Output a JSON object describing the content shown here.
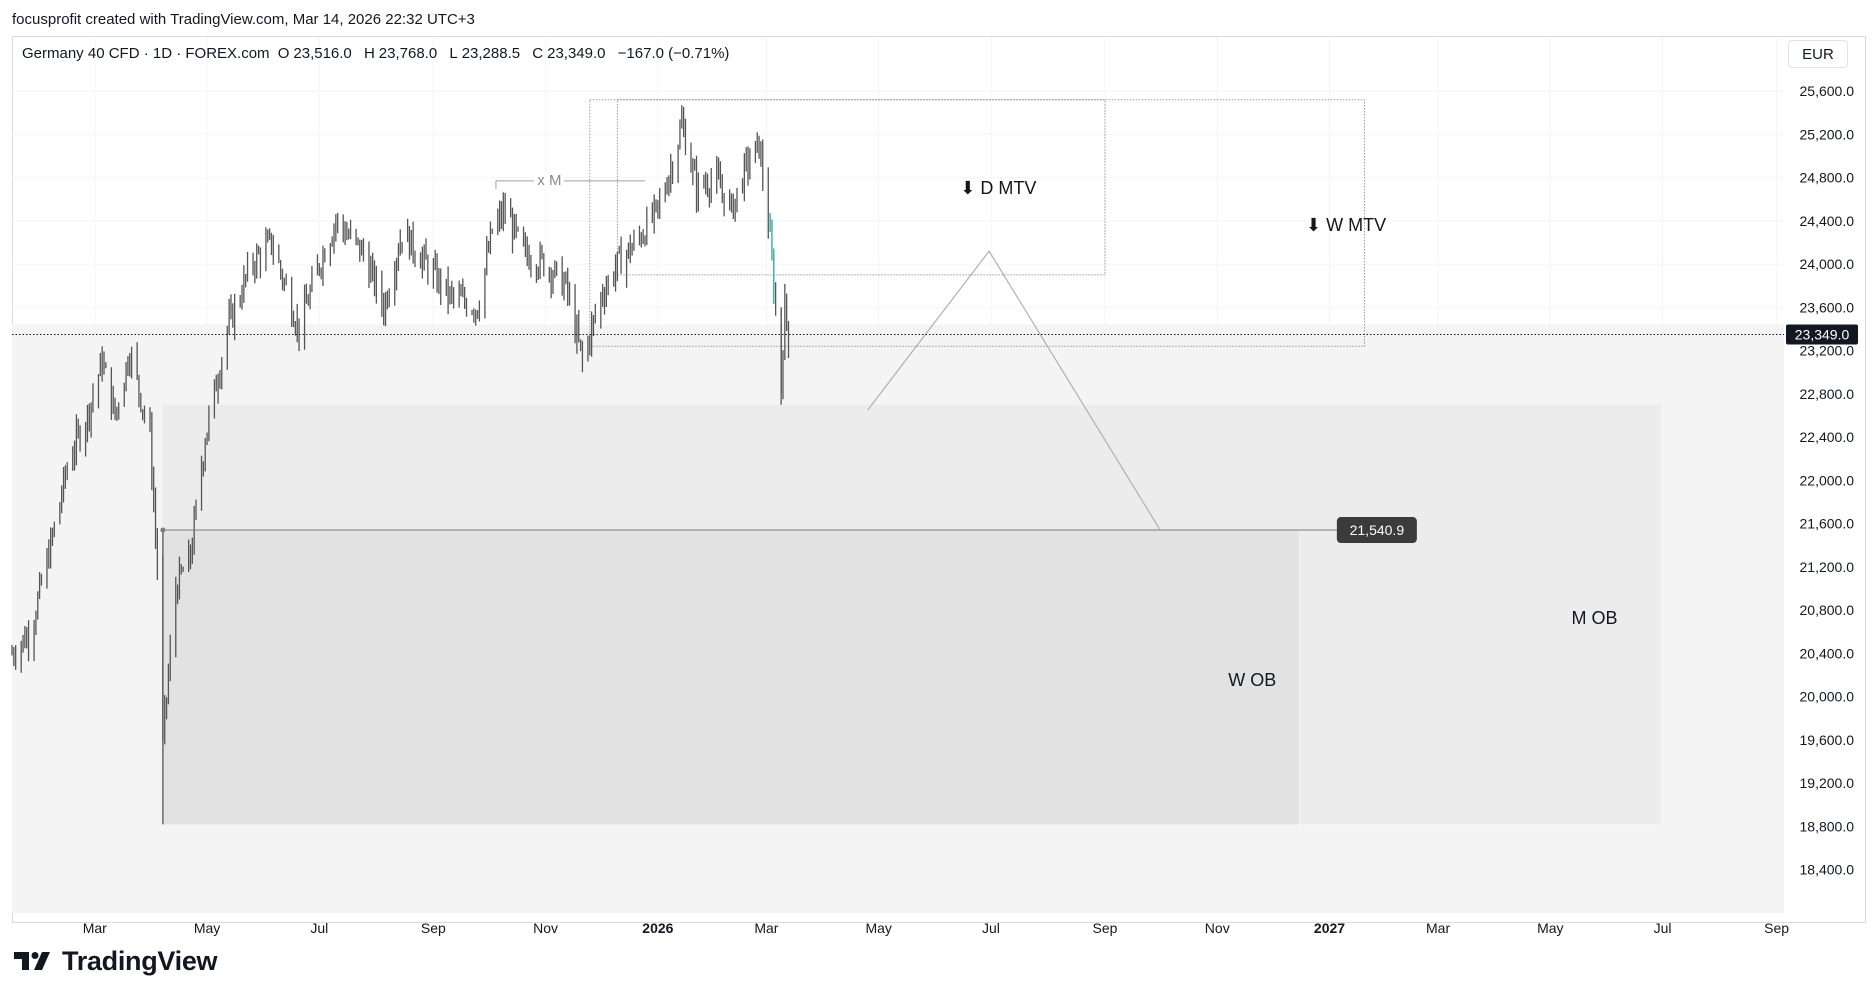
{
  "credit": "focusprofit created with TradingView.com, Mar 14, 2026 22:32 UTC+3",
  "symbol": {
    "name": "Germany 40 CFD · 1D · FOREX.com",
    "open_label": "O",
    "open": "23,516.0",
    "high_label": "H",
    "high": "23,768.0",
    "low_label": "L",
    "low": "23,288.5",
    "close_label": "C",
    "close": "23,349.0",
    "change": "−167.0 (−0.71%)"
  },
  "currency": "EUR",
  "logo_text": "TradingView",
  "colors": {
    "candle": "#555555",
    "last_candle_up": "#26a69a",
    "zone_outer": "#f4f4f4",
    "zone_mid": "#ececec",
    "zone_inner": "#e2e2e2",
    "price_tag": "#131722",
    "target_tag": "#3b3b3b"
  },
  "chart_data": {
    "type": "candlestick",
    "y_axis": {
      "ticks": [
        18400,
        18800,
        19200,
        19600,
        20000,
        20400,
        20800,
        21200,
        21600,
        22000,
        22400,
        22800,
        23200,
        23600,
        24000,
        24400,
        24800,
        25200,
        25600
      ],
      "tick_labels": [
        "18,400.0",
        "18,800.0",
        "19,200.0",
        "19,600.0",
        "20,000.0",
        "20,400.0",
        "20,800.0",
        "21,200.0",
        "21,600.0",
        "22,000.0",
        "22,400.0",
        "22,800.0",
        "23,200.0",
        "23,600.0",
        "24,000.0",
        "24,400.0",
        "24,800.0",
        "25,200.0",
        "25,600.0"
      ],
      "range": [
        18000,
        26100
      ]
    },
    "x_axis": {
      "ticks": [
        {
          "date": "2025-03-01",
          "label": "Mar",
          "bold": false
        },
        {
          "date": "2025-05-01",
          "label": "May",
          "bold": false
        },
        {
          "date": "2025-07-01",
          "label": "Jul",
          "bold": false
        },
        {
          "date": "2025-09-01",
          "label": "Sep",
          "bold": false
        },
        {
          "date": "2025-11-01",
          "label": "Nov",
          "bold": false
        },
        {
          "date": "2026-01-01",
          "label": "2026",
          "bold": true
        },
        {
          "date": "2026-03-01",
          "label": "Mar",
          "bold": false
        },
        {
          "date": "2026-05-01",
          "label": "May",
          "bold": false
        },
        {
          "date": "2026-07-01",
          "label": "Jul",
          "bold": false
        },
        {
          "date": "2026-09-01",
          "label": "Sep",
          "bold": false
        },
        {
          "date": "2026-11-01",
          "label": "Nov",
          "bold": false
        },
        {
          "date": "2027-01-01",
          "label": "2027",
          "bold": true
        },
        {
          "date": "2027-03-01",
          "label": "Mar",
          "bold": false
        },
        {
          "date": "2027-05-01",
          "label": "May",
          "bold": false
        },
        {
          "date": "2027-07-01",
          "label": "Jul",
          "bold": false
        },
        {
          "date": "2027-09-01",
          "label": "Sep",
          "bold": false
        }
      ],
      "range": [
        "2025-01-15",
        "2027-09-05"
      ]
    },
    "last_price": {
      "value": 23349.0,
      "label": "23,349.0"
    },
    "price_path": [
      [
        "2025-01-15",
        20400
      ],
      [
        "2025-01-25",
        20600
      ],
      [
        "2025-02-05",
        21400
      ],
      [
        "2025-02-15",
        22200
      ],
      [
        "2025-02-25",
        22600
      ],
      [
        "2025-03-05",
        23100
      ],
      [
        "2025-03-12",
        22600
      ],
      [
        "2025-03-20",
        23200
      ],
      [
        "2025-03-31",
        22400
      ],
      [
        "2025-04-04",
        21200
      ],
      [
        "2025-04-07",
        19600
      ],
      [
        "2025-04-09",
        20000
      ],
      [
        "2025-04-14",
        21000
      ],
      [
        "2025-04-22",
        21300
      ],
      [
        "2025-04-30",
        22400
      ],
      [
        "2025-05-12",
        23400
      ],
      [
        "2025-05-25",
        24000
      ],
      [
        "2025-06-05",
        24200
      ],
      [
        "2025-06-20",
        23400
      ],
      [
        "2025-07-01",
        24000
      ],
      [
        "2025-07-10",
        24400
      ],
      [
        "2025-07-25",
        24100
      ],
      [
        "2025-08-05",
        23600
      ],
      [
        "2025-08-15",
        24300
      ],
      [
        "2025-08-28",
        24000
      ],
      [
        "2025-09-10",
        23700
      ],
      [
        "2025-09-25",
        23600
      ],
      [
        "2025-10-03",
        24300
      ],
      [
        "2025-10-10",
        24500
      ],
      [
        "2025-10-20",
        24100
      ],
      [
        "2025-11-01",
        24000
      ],
      [
        "2025-11-12",
        23800
      ],
      [
        "2025-11-21",
        23100
      ],
      [
        "2025-12-01",
        23700
      ],
      [
        "2025-12-10",
        24000
      ],
      [
        "2025-12-20",
        24200
      ],
      [
        "2026-01-01",
        24500
      ],
      [
        "2026-01-10",
        25000
      ],
      [
        "2026-01-14",
        25300
      ],
      [
        "2026-01-22",
        24700
      ],
      [
        "2026-02-01",
        24800
      ],
      [
        "2026-02-10",
        24500
      ],
      [
        "2026-02-18",
        24900
      ],
      [
        "2026-02-25",
        25100
      ],
      [
        "2026-03-02",
        24400
      ],
      [
        "2026-03-05",
        23800
      ],
      [
        "2026-03-09",
        22900
      ],
      [
        "2026-03-11",
        23600
      ],
      [
        "2026-03-13",
        23349
      ]
    ],
    "horizontal_line": {
      "value": 21540.9,
      "label": "21,540.9",
      "start": "2025-04-07",
      "end": "2027-01-05"
    },
    "projection_path": [
      [
        "2026-04-25",
        22650
      ],
      [
        "2026-06-30",
        24120
      ],
      [
        "2026-10-01",
        21540.9
      ]
    ],
    "zones": [
      {
        "name": "W MTV",
        "start": "2025-11-25",
        "end": "2027-01-20",
        "top": 25520,
        "bottom": 23240,
        "style": "dotted"
      },
      {
        "name": "D MTV",
        "start": "2025-12-10",
        "end": "2026-09-01",
        "top": 25520,
        "bottom": 23900,
        "style": "dotted"
      },
      {
        "name": "M OB",
        "start": "2025-04-07",
        "end": "2027-06-30",
        "top": 22700,
        "bottom": 18820,
        "style": "fill"
      },
      {
        "name": "W OB",
        "start": "2025-04-07",
        "end": "2026-12-15",
        "top": 21540.9,
        "bottom": 18820,
        "style": "fill"
      }
    ],
    "labels": [
      {
        "text": "⬇ D MTV",
        "date": "2026-07-05",
        "value": 24700
      },
      {
        "text": "⬇ W MTV",
        "date": "2027-01-10",
        "value": 24360
      },
      {
        "text": "W OB",
        "date": "2026-11-20",
        "value": 20150
      },
      {
        "text": "M OB",
        "date": "2027-05-25",
        "value": 20720
      },
      {
        "text": "x M",
        "date": "2025-11-03",
        "value": 24770
      }
    ],
    "xm_line": {
      "start": "2025-10-05",
      "end": "2025-12-25",
      "value": 24770
    }
  }
}
